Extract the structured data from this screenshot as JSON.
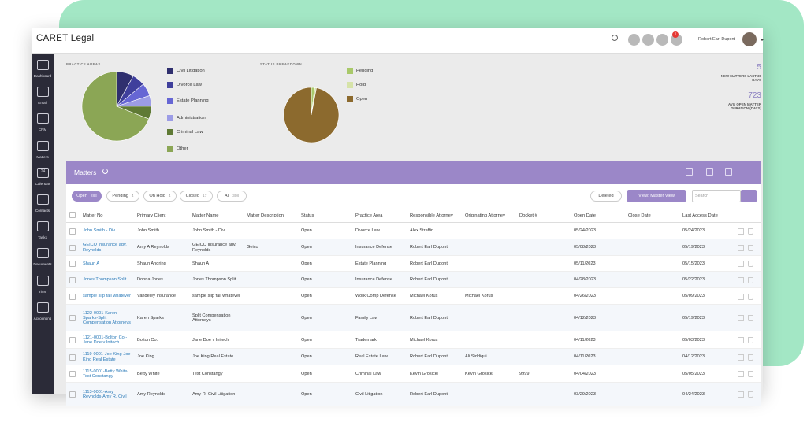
{
  "header": {
    "logo": "CARET Legal",
    "user": "Robert Earl Dupont",
    "notifications": 1
  },
  "sidebar": [
    "Dashboard",
    "Email",
    "CRM",
    "Matters",
    "Calendar",
    "Contacts",
    "Tasks",
    "Documents",
    "Time",
    "Accounting"
  ],
  "calendar_day": 24,
  "charts": [
    {
      "type": "pie",
      "title": "PRACTICE AREAS",
      "categories": [
        "Civil Litigation",
        "Divorce Law",
        "Estate Planning",
        "Administration",
        "Criminal Law",
        "Other"
      ],
      "values": [
        8,
        6,
        6,
        5,
        6,
        69
      ],
      "colors": [
        "#2f2f6e",
        "#3f3f9c",
        "#6666d4",
        "#9c9ce6",
        "#5f7a35",
        "#8ba655"
      ]
    },
    {
      "type": "pie",
      "title": "STATUS BREAKDOWN",
      "categories": [
        "Pending",
        "Hold",
        "Open"
      ],
      "values": [
        2,
        1,
        97
      ],
      "colors": [
        "#a9c96a",
        "#d6e3a8",
        "#8c6a2e"
      ]
    }
  ],
  "stats": [
    {
      "value": 5,
      "label": "NEW MATTERS LAST 30 DAYS"
    },
    {
      "value": 723,
      "label": "AVG OPEN MATTER DURATION (DAYS)"
    }
  ],
  "matters": {
    "title": "Matters",
    "filters": [
      {
        "label": "Open",
        "count": 283
      },
      {
        "label": "Pending",
        "count": 4
      },
      {
        "label": "On Hold",
        "count": 4
      },
      {
        "label": "Closed",
        "count": 17
      },
      {
        "label": "All",
        "count": 308
      }
    ],
    "deleted": "Deleted",
    "view": "View: Master View",
    "search_placeholder": "Search",
    "columns": [
      "Matter No",
      "Primary Client",
      "Matter Name",
      "Matter Description",
      "Status",
      "Practice Area",
      "Responsible Attorney",
      "Originating Attorney",
      "Docket #",
      "Open Date",
      "Close Date",
      "Last Access Date"
    ],
    "rows": [
      [
        "John Smith - Div",
        "John Smith",
        "John Smith - Div",
        null,
        "Open",
        "Divorce Law",
        "Alex Straffin",
        null,
        null,
        "05/24/2023",
        null,
        "05/24/2023"
      ],
      [
        "GEICO Insurance adv. Reynolds",
        "Amy A Reynolds",
        "GEICO Insurance adv. Reynolds",
        "Geico",
        "Open",
        "Insurance Defense",
        "Robert Earl Dupont",
        null,
        null,
        "05/08/2023",
        null,
        "05/19/2023"
      ],
      [
        "Shaun A",
        "Shaun Andring",
        "Shaun A",
        null,
        "Open",
        "Estate Planning",
        "Robert Earl Dupont",
        null,
        null,
        "05/11/2023",
        null,
        "05/15/2023"
      ],
      [
        "Jones Thompson Split",
        "Donna Jones",
        "Jones Thompson Split",
        null,
        "Open",
        "Insurance Defense",
        "Robert Earl Dupont",
        null,
        null,
        "04/28/2023",
        null,
        "05/22/2023"
      ],
      [
        "sample slip fall whatever",
        "Vandeley Insurance",
        "sample slip fall whatever",
        null,
        "Open",
        "Work Comp Defense",
        "Michael Korus",
        "Michael Korus",
        null,
        "04/26/2023",
        null,
        "05/09/2023"
      ],
      [
        "1122-0001-Karen Sparks-Split Compensation Attorneys",
        "Karen Sparks",
        "Split Compensation Attorneys",
        null,
        "Open",
        "Family Law",
        "Robert Earl Dupont",
        null,
        null,
        "04/12/2023",
        null,
        "05/19/2023"
      ],
      [
        "1121-0001-Bolton Co.- Jane Doe v Initech",
        "Bolton Co.",
        "Jane Doe v Initech",
        null,
        "Open",
        "Trademark",
        "Michael Korus",
        null,
        null,
        "04/11/2023",
        null,
        "05/03/2023"
      ],
      [
        "1119-0001-Joe King-Joe King Real Estate",
        "Joe King",
        "Joe King Real Estate",
        null,
        "Open",
        "Real Estate Law",
        "Robert Earl Dupont",
        "Ali Siddiqui",
        null,
        "04/11/2023",
        null,
        "04/12/2023"
      ],
      [
        "1115-0001-Betty White-Test Constangy",
        "Betty White",
        "Test Constangy",
        null,
        "Open",
        "Criminal Law",
        "Kevin Grosicki",
        "Kevin Grosicki",
        "9999",
        "04/04/2023",
        null,
        "05/05/2023"
      ],
      [
        "1113-0001-Amy Reynolds-Amy R. Civil",
        "Amy Reynolds",
        "Amy R. Civil Litigation",
        null,
        "Open",
        "Civil Litigation",
        "Robert Earl Dupont",
        null,
        null,
        "03/29/2023",
        null,
        "04/24/2023"
      ]
    ]
  }
}
